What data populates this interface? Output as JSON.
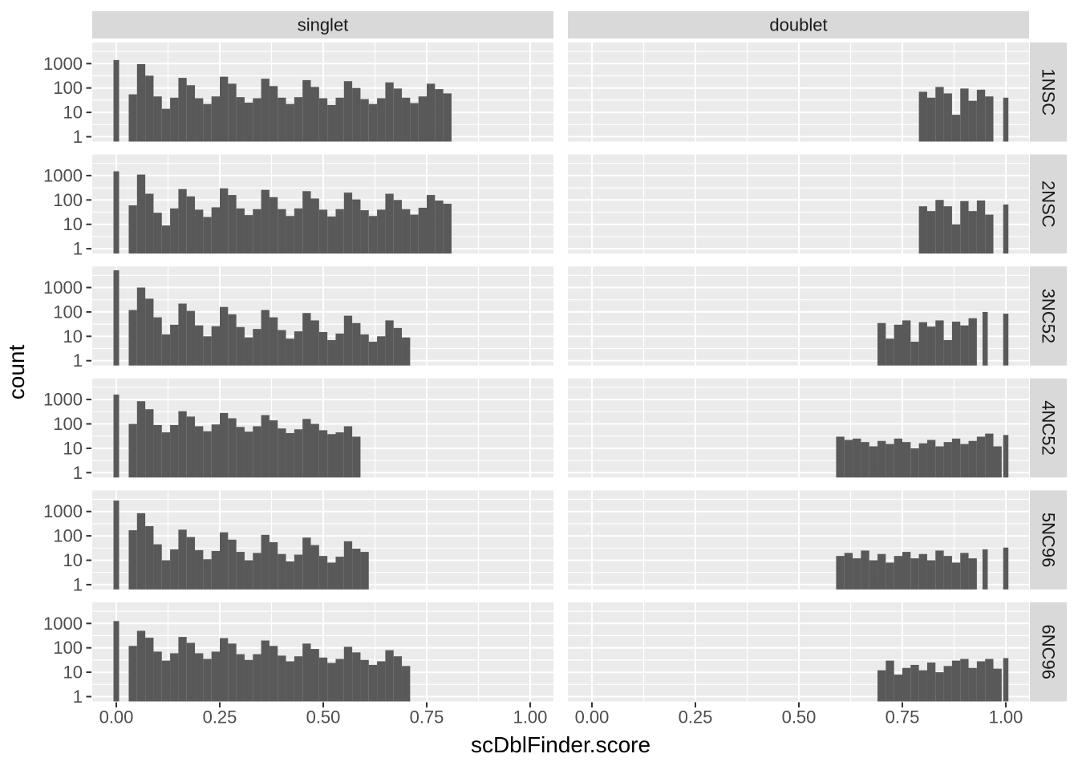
{
  "colors": {
    "background": "#FFFFFF",
    "panel_bg": "#EBEBEB",
    "strip_bg": "#D9D9D9",
    "bar": "#595959",
    "grid": "#FFFFFF",
    "tick_mark": "#333333",
    "tick_text": "#4D4D4D",
    "strip_text": "#1A1A1A",
    "title_text": "#000000"
  },
  "chart_data": {
    "type": "bar",
    "subtype": "faceted-histogram",
    "title": "",
    "xlabel": "scDblFinder.score",
    "ylabel": "count",
    "y_scale": "log10",
    "grid": true,
    "legend": "none",
    "x_ticks": {
      "labels": [
        "0.00",
        "0.25",
        "0.50",
        "0.75",
        "1.00"
      ],
      "values": [
        0,
        0.25,
        0.5,
        0.75,
        1
      ]
    },
    "y_ticks": {
      "labels": [
        "1000",
        "100",
        "10",
        "1"
      ],
      "values": [
        1000,
        100,
        10,
        1
      ]
    },
    "x_minor_gridlines": [
      0.125,
      0.375,
      0.625,
      0.875
    ],
    "y_minor_gridlines": [
      3.162,
      31.62,
      316.2,
      3162
    ],
    "xlim_panel": [
      -0.058,
      1.062
    ],
    "ylim_panel": [
      0.65,
      7200
    ],
    "col_facets": [
      "singlet",
      "doublet"
    ],
    "row_facets": [
      "1NSC",
      "2NSC",
      "3NC52",
      "4NC52",
      "5NC96",
      "6NC96"
    ],
    "binwidth": 0.02,
    "panels": [
      {
        "row": "1NSC",
        "col": "singlet",
        "zero": 1400,
        "x0": 0.04,
        "counts": [
          55,
          950,
          320,
          45,
          14,
          40,
          260,
          130,
          38,
          22,
          45,
          290,
          150,
          42,
          25,
          38,
          240,
          120,
          40,
          22,
          42,
          210,
          110,
          38,
          20,
          40,
          190,
          100,
          35,
          22,
          38,
          170,
          95,
          40,
          24,
          45,
          150,
          90,
          60
        ],
        "extras": []
      },
      {
        "row": "1NSC",
        "col": "doublet",
        "x0": 0.8,
        "counts": [
          70,
          40,
          110,
          60,
          8,
          95,
          30,
          85,
          45
        ],
        "extras": [
          [
            1.0,
            40
          ]
        ]
      },
      {
        "row": "2NSC",
        "col": "singlet",
        "zero": 1500,
        "x0": 0.04,
        "counts": [
          60,
          1100,
          180,
          30,
          9,
          45,
          280,
          140,
          40,
          20,
          50,
          300,
          160,
          45,
          24,
          42,
          260,
          130,
          42,
          22,
          45,
          230,
          115,
          40,
          21,
          42,
          200,
          105,
          38,
          22,
          40,
          180,
          100,
          42,
          25,
          48,
          160,
          95,
          70
        ],
        "extras": []
      },
      {
        "row": "2NSC",
        "col": "doublet",
        "x0": 0.8,
        "counts": [
          55,
          35,
          100,
          55,
          10,
          90,
          35,
          95,
          25
        ],
        "extras": [
          [
            1.0,
            65
          ]
        ]
      },
      {
        "row": "3NC52",
        "col": "singlet",
        "zero": 5100,
        "x0": 0.04,
        "counts": [
          120,
          1000,
          350,
          60,
          12,
          30,
          220,
          110,
          28,
          10,
          26,
          160,
          80,
          24,
          9,
          20,
          120,
          60,
          18,
          8,
          16,
          90,
          45,
          15,
          7,
          13,
          70,
          35,
          12,
          6,
          10,
          45,
          22,
          9
        ],
        "extras": []
      },
      {
        "row": "3NC52",
        "col": "doublet",
        "x0": 0.7,
        "counts": [
          35,
          8,
          30,
          45,
          6,
          38,
          25,
          45,
          7,
          40,
          28,
          55
        ],
        "extras": [
          [
            0.95,
            100
          ],
          [
            1.0,
            85
          ]
        ]
      },
      {
        "row": "4NC52",
        "col": "singlet",
        "zero": 1600,
        "x0": 0.04,
        "counts": [
          100,
          850,
          400,
          90,
          45,
          90,
          330,
          200,
          80,
          50,
          95,
          280,
          170,
          75,
          48,
          80,
          230,
          140,
          65,
          42,
          60,
          160,
          100,
          55,
          38,
          45,
          80,
          30
        ],
        "extras": []
      },
      {
        "row": "4NC52",
        "col": "doublet",
        "x0": 0.6,
        "counts": [
          30,
          22,
          25,
          18,
          12,
          20,
          15,
          25,
          18,
          10,
          16,
          22,
          12,
          18,
          25,
          15,
          20,
          30,
          40,
          12
        ],
        "extras": [
          [
            1.0,
            35
          ]
        ]
      },
      {
        "row": "5NC96",
        "col": "singlet",
        "zero": 2800,
        "x0": 0.04,
        "counts": [
          170,
          850,
          250,
          45,
          10,
          28,
          180,
          90,
          26,
          11,
          24,
          140,
          70,
          22,
          10,
          20,
          110,
          55,
          18,
          9,
          17,
          85,
          42,
          15,
          8,
          14,
          60,
          30,
          22
        ],
        "extras": []
      },
      {
        "row": "5NC96",
        "col": "doublet",
        "x0": 0.6,
        "counts": [
          15,
          20,
          12,
          25,
          10,
          18,
          8,
          15,
          22,
          12,
          18,
          10,
          25,
          15,
          8,
          20,
          12
        ],
        "extras": [
          [
            0.95,
            28
          ],
          [
            1.0,
            33
          ]
        ]
      },
      {
        "row": "6NC96",
        "col": "singlet",
        "zero": 1250,
        "x0": 0.04,
        "counts": [
          120,
          500,
          260,
          70,
          30,
          60,
          280,
          160,
          60,
          35,
          70,
          250,
          150,
          55,
          32,
          55,
          200,
          120,
          48,
          28,
          45,
          150,
          90,
          40,
          24,
          35,
          110,
          65,
          32,
          20,
          28,
          80,
          45,
          18
        ],
        "extras": []
      },
      {
        "row": "6NC96",
        "col": "doublet",
        "x0": 0.7,
        "counts": [
          12,
          30,
          8,
          15,
          20,
          12,
          25,
          10,
          18,
          30,
          35,
          15,
          28,
          35,
          14
        ],
        "extras": [
          [
            1.0,
            38
          ]
        ]
      }
    ]
  }
}
